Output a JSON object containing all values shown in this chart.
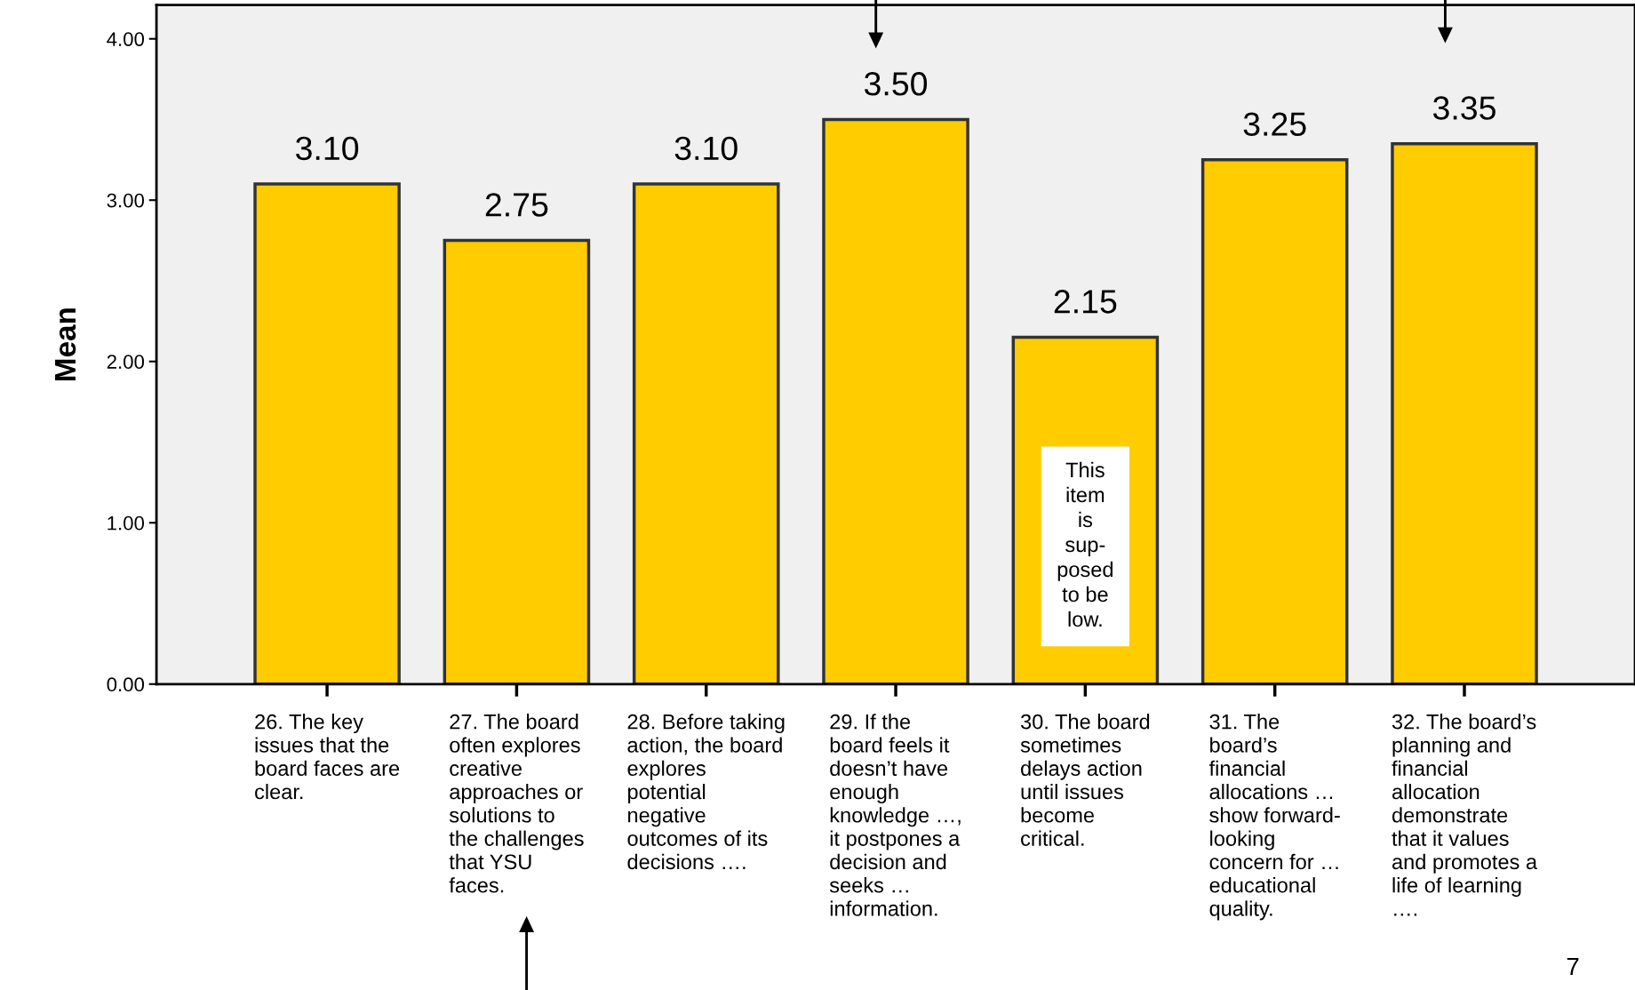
{
  "chart_data": {
    "type": "bar",
    "categories": [
      "26. The key\nissues that the\nboard faces are\nclear.",
      "27. The board\noften explores\ncreative\napproaches or\nsolutions to\nthe challenges\nthat YSU\nfaces.",
      "28. Before taking\naction, the board\nexplores\npotential\nnegative\noutcomes of its\ndecisions ….",
      "29. If the\nboard feels it\ndoesn’t have\nenough\nknowledge …,\nit postpones a\ndecision and\nseeks …\ninformation.",
      "30. The board\nsometimes\ndelays action\nuntil issues\nbecome\ncritical.",
      "31. The\nboard’s\nfinancial\nallocations …\nshow forward-\nlooking\nconcern for …\neducational\nquality.",
      "32. The board’s\nplanning and\nfinancial\nallocation\ndemonstrate\nthat it values\nand promotes a\nlife of learning\n…."
    ],
    "values": [
      3.1,
      2.75,
      3.1,
      3.5,
      2.15,
      3.25,
      3.35
    ],
    "value_labels": [
      "3.10",
      "2.75",
      "3.10",
      "3.50",
      "2.15",
      "3.25",
      "3.35"
    ],
    "color": "#ffcc00",
    "ylabel": "Mean",
    "ylim": [
      0,
      4.21
    ],
    "yticks": [
      {
        "value": 0,
        "label": "0.00"
      },
      {
        "value": 1,
        "label": "1.00"
      },
      {
        "value": 2,
        "label": "2.00"
      },
      {
        "value": 3,
        "label": "3.00"
      },
      {
        "value": 4,
        "label": "4.00"
      }
    ],
    "annotations": [
      "This\nitem\nis\nsup-\nposed\nto be\nlow.",
      "7"
    ]
  }
}
